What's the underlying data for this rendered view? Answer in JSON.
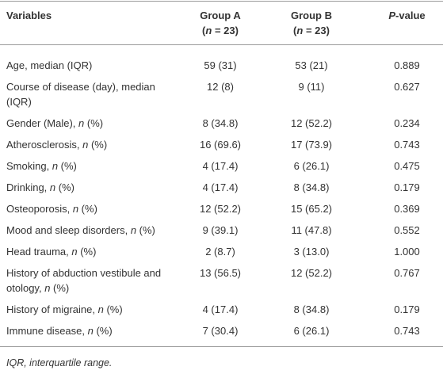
{
  "table": {
    "header": [
      [
        [
          {
            "text": "Variables"
          }
        ]
      ],
      [
        [
          {
            "text": "Group A"
          }
        ],
        [
          {
            "text": "("
          },
          {
            "text": "n",
            "italic": true
          },
          {
            "text": " = 23)"
          }
        ]
      ],
      [
        [
          {
            "text": "Group B"
          }
        ],
        [
          {
            "text": "("
          },
          {
            "text": "n",
            "italic": true
          },
          {
            "text": " = 23)"
          }
        ]
      ],
      [
        [
          {
            "text": "P",
            "italic": true
          },
          {
            "text": "-value"
          }
        ]
      ]
    ],
    "rows": [
      {
        "label": [
          {
            "text": "Age, median (IQR)"
          }
        ],
        "cells": [
          "59 (31)",
          "53 (21)",
          "0.889"
        ]
      },
      {
        "label": [
          {
            "text": "Course of disease (day), median (IQR)"
          }
        ],
        "cells": [
          "12 (8)",
          "9 (11)",
          "0.627"
        ]
      },
      {
        "label": [
          {
            "text": "Gender (Male), "
          },
          {
            "text": "n",
            "italic": true
          },
          {
            "text": " (%)"
          }
        ],
        "cells": [
          "8 (34.8)",
          "12 (52.2)",
          "0.234"
        ]
      },
      {
        "label": [
          {
            "text": "Atherosclerosis, "
          },
          {
            "text": "n",
            "italic": true
          },
          {
            "text": " (%)"
          }
        ],
        "cells": [
          "16 (69.6)",
          "17 (73.9)",
          "0.743"
        ]
      },
      {
        "label": [
          {
            "text": "Smoking, "
          },
          {
            "text": "n",
            "italic": true
          },
          {
            "text": " (%)"
          }
        ],
        "cells": [
          "4 (17.4)",
          "6 (26.1)",
          "0.475"
        ]
      },
      {
        "label": [
          {
            "text": "Drinking, "
          },
          {
            "text": "n",
            "italic": true
          },
          {
            "text": " (%)"
          }
        ],
        "cells": [
          "4 (17.4)",
          "8 (34.8)",
          "0.179"
        ]
      },
      {
        "label": [
          {
            "text": "Osteoporosis, "
          },
          {
            "text": "n",
            "italic": true
          },
          {
            "text": " (%)"
          }
        ],
        "cells": [
          "12 (52.2)",
          "15 (65.2)",
          "0.369"
        ]
      },
      {
        "label": [
          {
            "text": "Mood and sleep disorders, "
          },
          {
            "text": "n",
            "italic": true
          },
          {
            "text": " (%)"
          }
        ],
        "cells": [
          "9 (39.1)",
          "11 (47.8)",
          "0.552"
        ]
      },
      {
        "label": [
          {
            "text": "Head trauma, "
          },
          {
            "text": "n",
            "italic": true
          },
          {
            "text": " (%)"
          }
        ],
        "cells": [
          "2 (8.7)",
          "3 (13.0)",
          "1.000"
        ]
      },
      {
        "label": [
          {
            "text": "History of abduction vestibule and otology, "
          },
          {
            "text": "n",
            "italic": true
          },
          {
            "text": " (%)"
          }
        ],
        "cells": [
          "13 (56.5)",
          "12 (52.2)",
          "0.767"
        ]
      },
      {
        "label": [
          {
            "text": "History of migraine, "
          },
          {
            "text": "n",
            "italic": true
          },
          {
            "text": " (%)"
          }
        ],
        "cells": [
          "4 (17.4)",
          "8 (34.8)",
          "0.179"
        ]
      },
      {
        "label": [
          {
            "text": "Immune disease, "
          },
          {
            "text": "n",
            "italic": true
          },
          {
            "text": " (%)"
          }
        ],
        "cells": [
          "7 (30.4)",
          "6 (26.1)",
          "0.743"
        ]
      }
    ],
    "footnote": "IQR, interquartile range."
  }
}
